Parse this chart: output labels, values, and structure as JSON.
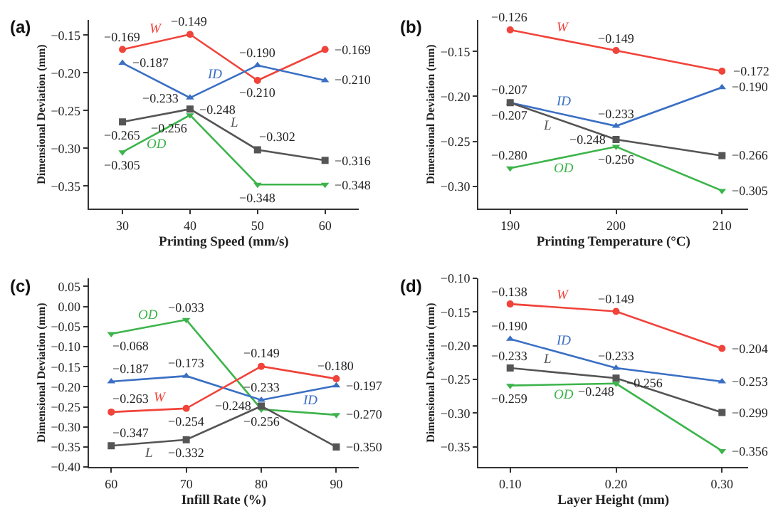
{
  "chart_data": [
    {
      "type": "line",
      "title": "(a)",
      "xlabel": "Printing Speed (mm/s)",
      "ylabel": "Dimensional Deviation (mm)",
      "x": [
        30,
        40,
        50,
        60
      ],
      "xlim": [
        25,
        65
      ],
      "xticks": [
        30,
        40,
        50,
        60
      ],
      "ylim": [
        -0.38,
        -0.13
      ],
      "yticks": [
        -0.35,
        {
          "value": -0.3,
          "label": "−0.30"
        },
        -0.25,
        {
          "value": -0.2,
          "label": "−0.20"
        },
        -0.15
      ],
      "legend": false,
      "line_style": "solid",
      "series": [
        {
          "name": "W",
          "color": "#f0433a",
          "marker": "circle",
          "values": [
            -0.169,
            -0.149,
            -0.21,
            -0.169
          ],
          "value_labels": [
            "−0.169",
            "−0.149",
            "−0.210",
            "−0.169"
          ]
        },
        {
          "name": "ID",
          "color": "#3a6fc4",
          "marker": "triangle",
          "values": [
            -0.187,
            -0.233,
            -0.19,
            -0.21
          ],
          "value_labels": [
            "−0.187",
            "−0.233",
            "−0.190",
            "−0.210"
          ]
        },
        {
          "name": "L",
          "color": "#555555",
          "marker": "square",
          "values": [
            -0.265,
            -0.248,
            -0.302,
            -0.316
          ],
          "value_labels": [
            "−0.265",
            "−0.248",
            "−0.302",
            "−0.316"
          ]
        },
        {
          "name": "OD",
          "color": "#3cb44b",
          "marker": "triangle-down",
          "values": [
            -0.305,
            -0.256,
            -0.348,
            -0.348
          ],
          "value_labels": [
            "−0.305",
            "−0.256",
            "−0.348",
            "−0.348"
          ]
        }
      ]
    },
    {
      "type": "line",
      "title": "(b)",
      "xlabel": "Printing Temperature (°C)",
      "ylabel": "Dimensional Deviation (mm)",
      "x": [
        190,
        200,
        210
      ],
      "xlim": [
        187,
        212.5
      ],
      "xticks": [
        190,
        200,
        210
      ],
      "ylim": [
        -0.325,
        -0.115
      ],
      "yticks": [
        {
          "value": -0.3,
          "label": "−0.30"
        },
        -0.25,
        {
          "value": -0.2,
          "label": "−0.20"
        },
        -0.15
      ],
      "legend": false,
      "line_style": "solid",
      "series": [
        {
          "name": "W",
          "color": "#f0433a",
          "marker": "circle",
          "values": [
            -0.126,
            -0.149,
            -0.172
          ],
          "value_labels": [
            "−0.126",
            "−0.149",
            "−0.172"
          ]
        },
        {
          "name": "ID",
          "color": "#3a6fc4",
          "marker": "triangle",
          "values": [
            -0.207,
            -0.233,
            -0.19
          ],
          "value_labels": [
            "−0.207",
            "−0.233",
            "−0.190"
          ]
        },
        {
          "name": "L",
          "color": "#555555",
          "marker": "square",
          "values": [
            -0.207,
            -0.248,
            -0.266
          ],
          "value_labels": [
            "−0.207",
            "−0.248",
            "−0.266"
          ]
        },
        {
          "name": "OD",
          "color": "#3cb44b",
          "marker": "triangle-down",
          "values": [
            -0.28,
            -0.256,
            -0.305
          ],
          "value_labels": [
            "−0.280",
            "−0.256",
            "−0.305"
          ]
        }
      ]
    },
    {
      "type": "line",
      "title": "(c)",
      "xlabel": "Infill Rate (%)",
      "ylabel": "Dimensional Deviation (mm)",
      "x": [
        60,
        70,
        80,
        90
      ],
      "xlim": [
        57,
        93
      ],
      "xticks": [
        60,
        70,
        80,
        90
      ],
      "ylim": [
        -0.4,
        0.07
      ],
      "yticks": [
        {
          "value": -0.4,
          "label": "−0.40"
        },
        -0.35,
        {
          "value": -0.3,
          "label": "−0.30"
        },
        -0.25,
        {
          "value": -0.2,
          "label": "−0.20"
        },
        -0.15,
        {
          "value": -0.1,
          "label": "−0.10"
        },
        -0.05,
        {
          "value": 0.0,
          "label": "0.00"
        },
        0.05
      ],
      "legend": false,
      "line_style": "solid",
      "series": [
        {
          "name": "OD",
          "color": "#3cb44b",
          "marker": "triangle-down",
          "values": [
            -0.068,
            -0.033,
            -0.256,
            -0.27
          ],
          "value_labels": [
            "−0.068",
            "−0.033",
            "−0.256",
            "−0.270"
          ]
        },
        {
          "name": "ID",
          "color": "#3a6fc4",
          "marker": "triangle",
          "values": [
            -0.187,
            -0.173,
            -0.233,
            -0.197
          ],
          "value_labels": [
            "−0.187",
            "−0.173",
            "−0.233",
            "−0.197"
          ]
        },
        {
          "name": "W",
          "color": "#f0433a",
          "marker": "circle",
          "values": [
            -0.263,
            -0.254,
            -0.149,
            -0.18
          ],
          "value_labels": [
            "−0.263",
            "−0.254",
            "−0.149",
            "−0.180"
          ]
        },
        {
          "name": "L",
          "color": "#555555",
          "marker": "square",
          "values": [
            -0.347,
            -0.332,
            -0.248,
            -0.35
          ],
          "value_labels": [
            "−0.347",
            "−0.332",
            "−0.248",
            "−0.350"
          ]
        }
      ]
    },
    {
      "type": "line",
      "title": "(d)",
      "xlabel": "Layer Height (mm)",
      "ylabel": "Dimensional Deviation (mm)",
      "x": [
        0.1,
        0.2,
        0.3
      ],
      "xlim": [
        0.07,
        0.325
      ],
      "xticks": [
        {
          "value": 0.1,
          "label": "0.10"
        },
        {
          "value": 0.2,
          "label": "0.20"
        },
        {
          "value": 0.3,
          "label": "0.30"
        }
      ],
      "ylim": [
        -0.38,
        -0.1
      ],
      "yticks": [
        -0.35,
        {
          "value": -0.3,
          "label": "−0.30"
        },
        -0.25,
        {
          "value": -0.2,
          "label": "−0.20"
        },
        -0.15,
        {
          "value": -0.1,
          "label": "−0.10"
        }
      ],
      "legend": false,
      "line_style": "solid",
      "series": [
        {
          "name": "W",
          "color": "#f0433a",
          "marker": "circle",
          "values": [
            -0.138,
            -0.149,
            -0.204
          ],
          "value_labels": [
            "−0.138",
            "−0.149",
            "−0.204"
          ]
        },
        {
          "name": "ID",
          "color": "#3a6fc4",
          "marker": "triangle",
          "values": [
            -0.19,
            -0.233,
            -0.253
          ],
          "value_labels": [
            "−0.190",
            "−0.233",
            "−0.253"
          ]
        },
        {
          "name": "L",
          "color": "#555555",
          "marker": "square",
          "values": [
            -0.233,
            -0.248,
            -0.299
          ],
          "value_labels": [
            "−0.233",
            "−0.248",
            "−0.299"
          ]
        },
        {
          "name": "OD",
          "color": "#3cb44b",
          "marker": "triangle-down",
          "values": [
            -0.259,
            -0.256,
            -0.356
          ],
          "value_labels": [
            "−0.259",
            "−0.256",
            "−0.356"
          ]
        }
      ]
    }
  ]
}
